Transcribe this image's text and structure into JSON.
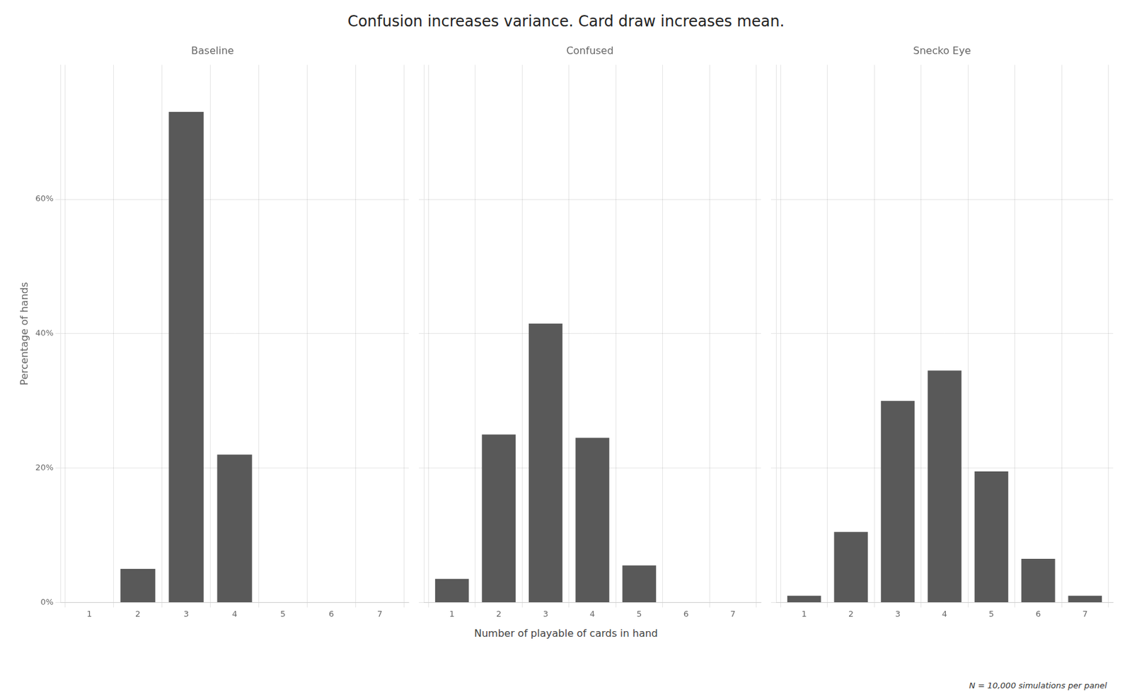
{
  "title": "Confusion increases variance. Card draw increases mean.",
  "subtitle": "N = 10,000 simulations per panel",
  "xlabel": "Number of playable of cards in hand",
  "chart_data": [
    {
      "type": "bar",
      "title": "Baseline",
      "ylabel": "Percentage of hands",
      "x": [
        1,
        2,
        3,
        4,
        5,
        6,
        7
      ],
      "values": [
        0.0,
        0.05,
        0.73,
        0.22,
        0.0,
        0.0,
        0.0
      ],
      "color": "#595959",
      "xlim": [
        0.4,
        7.6
      ],
      "xticks": [
        1,
        2,
        3,
        4,
        5,
        6,
        7
      ],
      "ylim": [
        0,
        0.8
      ],
      "yticks": [
        {
          "value": 0.0,
          "label": "0%"
        },
        {
          "value": 0.2,
          "label": "20%"
        },
        {
          "value": 0.4,
          "label": "40%"
        },
        {
          "value": 0.6,
          "label": "60%"
        }
      ],
      "grid": true
    },
    {
      "type": "bar",
      "title": "Confused",
      "x": [
        1,
        2,
        3,
        4,
        5,
        6,
        7
      ],
      "values": [
        0.035,
        0.25,
        0.415,
        0.245,
        0.055,
        0.0,
        0.0
      ],
      "color": "#595959",
      "xlim": [
        0.4,
        7.6
      ],
      "xticks": [
        1,
        2,
        3,
        4,
        5,
        6,
        7
      ],
      "ylim": [
        0,
        0.8
      ],
      "yticks": [
        0.0,
        0.2,
        0.4,
        0.6
      ],
      "grid": true,
      "tick_labels": "x"
    },
    {
      "type": "bar",
      "title": "Snecko Eye",
      "x": [
        1,
        2,
        3,
        4,
        5,
        6,
        7
      ],
      "values": [
        0.01,
        0.105,
        0.3,
        0.345,
        0.195,
        0.065,
        0.01
      ],
      "color": "#595959",
      "xlim": [
        0.4,
        7.6
      ],
      "xticks": [
        1,
        2,
        3,
        4,
        5,
        6,
        7
      ],
      "ylim": [
        0,
        0.8
      ],
      "yticks": [
        0.0,
        0.2,
        0.4,
        0.6
      ],
      "grid": true,
      "tick_labels": "x"
    }
  ]
}
